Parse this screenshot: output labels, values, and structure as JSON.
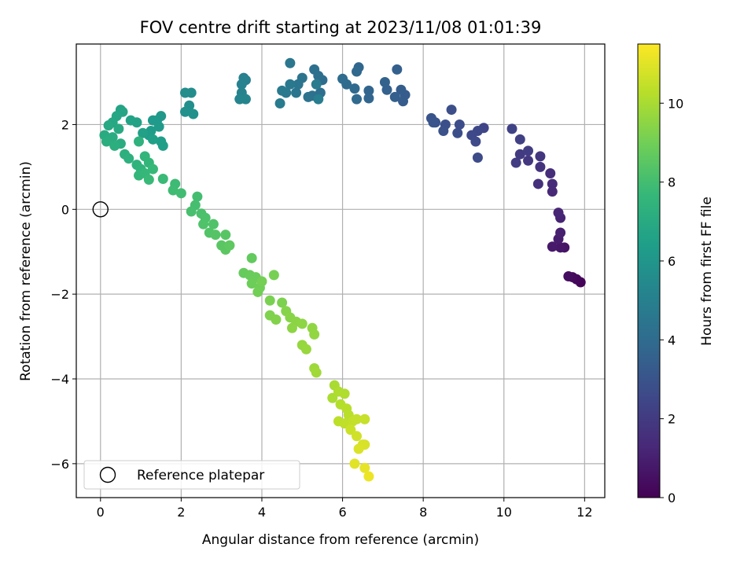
{
  "chart_data": {
    "type": "scatter",
    "title": "FOV centre drift starting at 2023/11/08 01:01:39",
    "xlabel": "Angular distance from reference (arcmin)",
    "ylabel": "Rotation from reference (arcmin)",
    "xlim": [
      -0.6,
      12.5
    ],
    "ylim": [
      -6.8,
      3.9
    ],
    "x_ticks": [
      0,
      2,
      4,
      6,
      8,
      10,
      12
    ],
    "y_ticks": [
      -6,
      -4,
      -2,
      0,
      2
    ],
    "grid": true,
    "legend": {
      "position": "lower-left",
      "entries": [
        "Reference platepar"
      ]
    },
    "reference_point": {
      "x": 0,
      "y": 0,
      "label": "Reference platepar"
    },
    "colorbar": {
      "label": "Hours from first FF file",
      "range": [
        0,
        11.5
      ],
      "ticks": [
        0,
        2,
        4,
        6,
        8,
        10
      ],
      "colormap": "viridis"
    },
    "series": [
      {
        "points": [
          {
            "x": 11.9,
            "y": -1.72,
            "c": 0.1
          },
          {
            "x": 11.8,
            "y": -1.65,
            "c": 0.2
          },
          {
            "x": 11.7,
            "y": -1.6,
            "c": 0.3
          },
          {
            "x": 11.6,
            "y": -1.58,
            "c": 0.4
          },
          {
            "x": 11.5,
            "y": -0.9,
            "c": 0.6
          },
          {
            "x": 11.4,
            "y": -0.9,
            "c": 0.7
          },
          {
            "x": 11.2,
            "y": -0.88,
            "c": 0.8
          },
          {
            "x": 11.35,
            "y": -0.7,
            "c": 0.9
          },
          {
            "x": 11.4,
            "y": -0.55,
            "c": 1.0
          },
          {
            "x": 11.4,
            "y": -0.2,
            "c": 1.1
          },
          {
            "x": 11.35,
            "y": -0.08,
            "c": 1.2
          },
          {
            "x": 11.2,
            "y": 0.42,
            "c": 1.3
          },
          {
            "x": 11.2,
            "y": 0.6,
            "c": 1.4
          },
          {
            "x": 11.15,
            "y": 0.85,
            "c": 1.5
          },
          {
            "x": 10.85,
            "y": 0.6,
            "c": 1.6
          },
          {
            "x": 10.9,
            "y": 1.0,
            "c": 1.7
          },
          {
            "x": 10.9,
            "y": 1.25,
            "c": 1.8
          },
          {
            "x": 10.6,
            "y": 1.15,
            "c": 1.9
          },
          {
            "x": 10.4,
            "y": 1.3,
            "c": 2.0
          },
          {
            "x": 10.3,
            "y": 1.1,
            "c": 2.05
          },
          {
            "x": 10.6,
            "y": 1.38,
            "c": 2.1
          },
          {
            "x": 10.4,
            "y": 1.65,
            "c": 2.2
          },
          {
            "x": 10.2,
            "y": 1.9,
            "c": 2.3
          },
          {
            "x": 9.5,
            "y": 1.92,
            "c": 2.4
          },
          {
            "x": 9.35,
            "y": 1.85,
            "c": 2.5
          },
          {
            "x": 9.2,
            "y": 1.75,
            "c": 2.55
          },
          {
            "x": 9.3,
            "y": 1.6,
            "c": 2.6
          },
          {
            "x": 9.35,
            "y": 1.22,
            "c": 2.65
          },
          {
            "x": 8.9,
            "y": 2.0,
            "c": 2.7
          },
          {
            "x": 8.85,
            "y": 1.8,
            "c": 2.75
          },
          {
            "x": 8.7,
            "y": 2.35,
            "c": 2.8
          },
          {
            "x": 8.55,
            "y": 2.0,
            "c": 2.85
          },
          {
            "x": 8.5,
            "y": 1.85,
            "c": 2.9
          },
          {
            "x": 8.3,
            "y": 2.05,
            "c": 2.95
          },
          {
            "x": 8.2,
            "y": 2.15,
            "c": 3.0
          },
          {
            "x": 8.25,
            "y": 2.05,
            "c": 3.05
          },
          {
            "x": 7.55,
            "y": 2.7,
            "c": 3.3
          },
          {
            "x": 7.5,
            "y": 2.55,
            "c": 3.35
          },
          {
            "x": 7.45,
            "y": 2.82,
            "c": 3.4
          },
          {
            "x": 7.3,
            "y": 2.65,
            "c": 3.45
          },
          {
            "x": 7.35,
            "y": 3.3,
            "c": 3.5
          },
          {
            "x": 7.1,
            "y": 2.82,
            "c": 3.55
          },
          {
            "x": 7.05,
            "y": 3.0,
            "c": 3.6
          },
          {
            "x": 6.65,
            "y": 2.8,
            "c": 3.7
          },
          {
            "x": 6.65,
            "y": 2.62,
            "c": 3.75
          },
          {
            "x": 6.4,
            "y": 3.35,
            "c": 3.8
          },
          {
            "x": 6.35,
            "y": 3.25,
            "c": 3.85
          },
          {
            "x": 6.3,
            "y": 2.85,
            "c": 3.9
          },
          {
            "x": 6.35,
            "y": 2.6,
            "c": 3.95
          },
          {
            "x": 6.1,
            "y": 2.95,
            "c": 4.0
          },
          {
            "x": 6.0,
            "y": 3.08,
            "c": 4.05
          },
          {
            "x": 5.5,
            "y": 3.05,
            "c": 4.1
          },
          {
            "x": 5.45,
            "y": 2.75,
            "c": 4.15
          },
          {
            "x": 5.4,
            "y": 3.15,
            "c": 4.2
          },
          {
            "x": 5.3,
            "y": 3.3,
            "c": 4.25
          },
          {
            "x": 5.25,
            "y": 2.68,
            "c": 4.3
          },
          {
            "x": 5.15,
            "y": 2.65,
            "c": 4.35
          },
          {
            "x": 5.0,
            "y": 3.1,
            "c": 4.4
          },
          {
            "x": 4.9,
            "y": 2.95,
            "c": 4.45
          },
          {
            "x": 4.85,
            "y": 2.75,
            "c": 4.5
          },
          {
            "x": 4.7,
            "y": 3.45,
            "c": 4.55
          },
          {
            "x": 4.7,
            "y": 2.95,
            "c": 4.6
          },
          {
            "x": 4.6,
            "y": 2.75,
            "c": 4.65
          },
          {
            "x": 4.5,
            "y": 2.8,
            "c": 4.7
          },
          {
            "x": 4.45,
            "y": 2.5,
            "c": 4.75
          },
          {
            "x": 5.35,
            "y": 2.95,
            "c": 4.8
          },
          {
            "x": 5.4,
            "y": 2.6,
            "c": 4.85
          },
          {
            "x": 3.6,
            "y": 3.05,
            "c": 5.0
          },
          {
            "x": 3.55,
            "y": 3.1,
            "c": 5.05
          },
          {
            "x": 3.5,
            "y": 2.95,
            "c": 5.1
          },
          {
            "x": 3.5,
            "y": 2.75,
            "c": 5.15
          },
          {
            "x": 3.45,
            "y": 2.6,
            "c": 5.2
          },
          {
            "x": 3.6,
            "y": 2.6,
            "c": 5.25
          },
          {
            "x": 2.25,
            "y": 2.75,
            "c": 5.6
          },
          {
            "x": 2.1,
            "y": 2.75,
            "c": 5.65
          },
          {
            "x": 2.2,
            "y": 2.45,
            "c": 5.7
          },
          {
            "x": 2.1,
            "y": 2.3,
            "c": 5.75
          },
          {
            "x": 2.3,
            "y": 2.25,
            "c": 5.8
          },
          {
            "x": 1.5,
            "y": 2.2,
            "c": 6.1
          },
          {
            "x": 1.4,
            "y": 2.1,
            "c": 6.15
          },
          {
            "x": 1.3,
            "y": 2.1,
            "c": 6.2
          },
          {
            "x": 1.45,
            "y": 1.95,
            "c": 6.25
          },
          {
            "x": 1.25,
            "y": 1.85,
            "c": 6.3
          },
          {
            "x": 1.2,
            "y": 1.75,
            "c": 6.35
          },
          {
            "x": 1.5,
            "y": 1.6,
            "c": 6.4
          },
          {
            "x": 1.55,
            "y": 1.5,
            "c": 6.45
          },
          {
            "x": 1.3,
            "y": 1.65,
            "c": 6.5
          },
          {
            "x": 1.05,
            "y": 1.8,
            "c": 6.55
          },
          {
            "x": 0.9,
            "y": 2.05,
            "c": 6.6
          },
          {
            "x": 0.75,
            "y": 2.1,
            "c": 6.65
          },
          {
            "x": 0.5,
            "y": 2.35,
            "c": 6.7
          },
          {
            "x": 0.55,
            "y": 2.3,
            "c": 6.75
          },
          {
            "x": 0.4,
            "y": 2.2,
            "c": 6.8
          },
          {
            "x": 0.3,
            "y": 2.05,
            "c": 6.85
          },
          {
            "x": 0.2,
            "y": 1.98,
            "c": 6.9
          },
          {
            "x": 0.45,
            "y": 1.9,
            "c": 6.95
          },
          {
            "x": 0.1,
            "y": 1.75,
            "c": 7.0
          },
          {
            "x": 0.3,
            "y": 1.7,
            "c": 7.05
          },
          {
            "x": 0.5,
            "y": 1.55,
            "c": 7.1
          },
          {
            "x": 0.15,
            "y": 1.6,
            "c": 7.15
          },
          {
            "x": 0.35,
            "y": 1.5,
            "c": 7.2
          },
          {
            "x": 0.6,
            "y": 1.3,
            "c": 7.25
          },
          {
            "x": 0.7,
            "y": 1.2,
            "c": 7.3
          },
          {
            "x": 0.95,
            "y": 1.6,
            "c": 7.35
          },
          {
            "x": 0.9,
            "y": 1.05,
            "c": 7.4
          },
          {
            "x": 1.0,
            "y": 0.95,
            "c": 7.45
          },
          {
            "x": 1.1,
            "y": 1.25,
            "c": 7.5
          },
          {
            "x": 1.2,
            "y": 1.1,
            "c": 7.55
          },
          {
            "x": 0.95,
            "y": 0.8,
            "c": 7.6
          },
          {
            "x": 1.1,
            "y": 0.85,
            "c": 7.65
          },
          {
            "x": 1.3,
            "y": 0.95,
            "c": 7.7
          },
          {
            "x": 1.2,
            "y": 0.7,
            "c": 7.75
          },
          {
            "x": 1.55,
            "y": 0.72,
            "c": 7.8
          },
          {
            "x": 1.85,
            "y": 0.6,
            "c": 7.85
          },
          {
            "x": 1.8,
            "y": 0.45,
            "c": 7.9
          },
          {
            "x": 2.0,
            "y": 0.38,
            "c": 7.95
          },
          {
            "x": 2.4,
            "y": 0.3,
            "c": 8.0
          },
          {
            "x": 2.35,
            "y": 0.1,
            "c": 8.05
          },
          {
            "x": 2.25,
            "y": -0.05,
            "c": 8.1
          },
          {
            "x": 2.5,
            "y": -0.1,
            "c": 8.15
          },
          {
            "x": 2.6,
            "y": -0.2,
            "c": 8.2
          },
          {
            "x": 2.55,
            "y": -0.35,
            "c": 8.25
          },
          {
            "x": 2.8,
            "y": -0.35,
            "c": 8.3
          },
          {
            "x": 2.7,
            "y": -0.55,
            "c": 8.35
          },
          {
            "x": 2.85,
            "y": -0.6,
            "c": 8.4
          },
          {
            "x": 3.1,
            "y": -0.6,
            "c": 8.45
          },
          {
            "x": 3.0,
            "y": -0.85,
            "c": 8.5
          },
          {
            "x": 3.1,
            "y": -0.95,
            "c": 8.55
          },
          {
            "x": 3.2,
            "y": -0.85,
            "c": 8.6
          },
          {
            "x": 3.75,
            "y": -1.15,
            "c": 8.7
          },
          {
            "x": 3.55,
            "y": -1.5,
            "c": 8.75
          },
          {
            "x": 3.7,
            "y": -1.55,
            "c": 8.8
          },
          {
            "x": 3.85,
            "y": -1.6,
            "c": 8.85
          },
          {
            "x": 3.75,
            "y": -1.75,
            "c": 8.9
          },
          {
            "x": 3.95,
            "y": -1.85,
            "c": 8.95
          },
          {
            "x": 3.9,
            "y": -1.95,
            "c": 9.0
          },
          {
            "x": 4.0,
            "y": -1.7,
            "c": 9.05
          },
          {
            "x": 4.3,
            "y": -1.55,
            "c": 9.1
          },
          {
            "x": 4.2,
            "y": -2.15,
            "c": 9.15
          },
          {
            "x": 4.5,
            "y": -2.2,
            "c": 9.2
          },
          {
            "x": 4.2,
            "y": -2.5,
            "c": 9.25
          },
          {
            "x": 4.35,
            "y": -2.6,
            "c": 9.3
          },
          {
            "x": 4.6,
            "y": -2.4,
            "c": 9.35
          },
          {
            "x": 4.7,
            "y": -2.55,
            "c": 9.4
          },
          {
            "x": 4.85,
            "y": -2.65,
            "c": 9.45
          },
          {
            "x": 5.0,
            "y": -2.7,
            "c": 9.5
          },
          {
            "x": 4.75,
            "y": -2.8,
            "c": 9.5
          },
          {
            "x": 5.25,
            "y": -2.8,
            "c": 9.55
          },
          {
            "x": 5.3,
            "y": -2.95,
            "c": 9.6
          },
          {
            "x": 5.0,
            "y": -3.2,
            "c": 9.65
          },
          {
            "x": 5.1,
            "y": -3.3,
            "c": 9.7
          },
          {
            "x": 5.3,
            "y": -3.75,
            "c": 9.8
          },
          {
            "x": 5.35,
            "y": -3.85,
            "c": 9.85
          },
          {
            "x": 5.8,
            "y": -4.15,
            "c": 10.0
          },
          {
            "x": 5.75,
            "y": -4.45,
            "c": 10.05
          },
          {
            "x": 5.9,
            "y": -4.3,
            "c": 10.1
          },
          {
            "x": 6.05,
            "y": -4.35,
            "c": 10.15
          },
          {
            "x": 5.95,
            "y": -4.6,
            "c": 10.2
          },
          {
            "x": 6.1,
            "y": -4.7,
            "c": 10.25
          },
          {
            "x": 6.15,
            "y": -4.85,
            "c": 10.3
          },
          {
            "x": 5.9,
            "y": -5.0,
            "c": 10.35
          },
          {
            "x": 6.05,
            "y": -5.05,
            "c": 10.4
          },
          {
            "x": 6.25,
            "y": -5.0,
            "c": 10.45
          },
          {
            "x": 6.35,
            "y": -4.95,
            "c": 10.5
          },
          {
            "x": 6.55,
            "y": -4.95,
            "c": 10.55
          },
          {
            "x": 6.2,
            "y": -5.2,
            "c": 10.6
          },
          {
            "x": 6.35,
            "y": -5.35,
            "c": 10.7
          },
          {
            "x": 6.5,
            "y": -5.55,
            "c": 10.8
          },
          {
            "x": 6.55,
            "y": -5.55,
            "c": 10.85
          },
          {
            "x": 6.4,
            "y": -5.65,
            "c": 10.9
          },
          {
            "x": 6.3,
            "y": -6.0,
            "c": 11.0
          },
          {
            "x": 6.55,
            "y": -6.1,
            "c": 11.1
          },
          {
            "x": 6.65,
            "y": -6.3,
            "c": 11.2
          }
        ]
      }
    ],
    "colors": {
      "grid": "#b0b0b0",
      "axis": "#000000",
      "viridis": [
        "#440154",
        "#482878",
        "#3e4989",
        "#31688e",
        "#26828e",
        "#1f9e89",
        "#35b779",
        "#6ece58",
        "#b5de2b",
        "#fde725"
      ]
    }
  }
}
